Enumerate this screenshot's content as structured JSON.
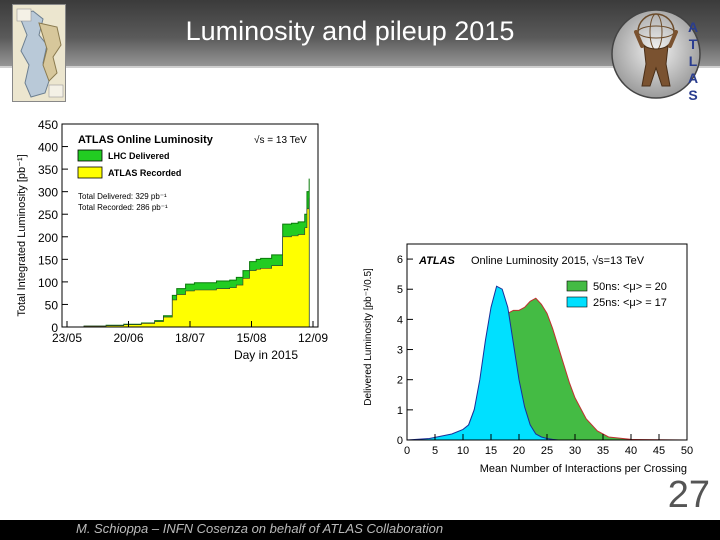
{
  "header": {
    "title": "Luminosity and pileup 2015"
  },
  "logo": {
    "letters": [
      "A",
      "T",
      "L",
      "A",
      "S"
    ]
  },
  "footer": {
    "text": "M. Schioppa – INFN Cosenza on behalf of ATLAS Collaboration",
    "page_number": "27"
  },
  "colors": {
    "delivered": "#22cc22",
    "recorded": "#ffff00",
    "ns50": "#44bb44",
    "ns25": "#00e0ff",
    "header_dark": "#3b3b3b"
  },
  "chart_data": [
    {
      "type": "area",
      "title": "ATLAS Online Luminosity",
      "energy_label": "√s = 13 TeV",
      "xlabel": "Day in 2015",
      "ylabel": "Total Integrated Luminosity [pb⁻¹]",
      "xticks": [
        "23/05",
        "20/06",
        "18/07",
        "15/08",
        "12/09"
      ],
      "yticks": [
        0,
        50,
        100,
        150,
        200,
        250,
        300,
        350,
        400,
        450
      ],
      "xlim": [
        0,
        116
      ],
      "ylim": [
        0,
        450
      ],
      "legend": [
        "LHC Delivered",
        "ATLAS Recorded"
      ],
      "legend_position": "top-left",
      "annotations": [
        "Total Delivered: 329 pb⁻¹",
        "Total Recorded: 286 pb⁻¹"
      ],
      "x": [
        0,
        10,
        20,
        28,
        36,
        42,
        46,
        50,
        52,
        56,
        60,
        70,
        76,
        79,
        82,
        85,
        88,
        90,
        95,
        100,
        104,
        107,
        110,
        111,
        112
      ],
      "series": [
        {
          "name": "LHC Delivered",
          "values": [
            0,
            2,
            4,
            6,
            9,
            14,
            25,
            70,
            85,
            95,
            98,
            102,
            104,
            110,
            125,
            145,
            150,
            152,
            160,
            228,
            230,
            233,
            250,
            300,
            329
          ]
        },
        {
          "name": "ATLAS Recorded",
          "values": [
            0,
            2,
            3,
            5,
            8,
            12,
            22,
            60,
            72,
            80,
            82,
            85,
            87,
            93,
            108,
            125,
            128,
            130,
            136,
            200,
            202,
            205,
            220,
            262,
            286
          ]
        }
      ]
    },
    {
      "type": "area",
      "title": "ATLAS",
      "subtitle": "Online Luminosity 2015, √s=13 TeV",
      "xlabel": "Mean Number of Interactions per Crossing",
      "ylabel": "Delivered Luminosity [pb⁻¹/0.5]",
      "xticks": [
        0,
        5,
        10,
        15,
        20,
        25,
        30,
        35,
        40,
        45,
        50
      ],
      "yticks": [
        0,
        1,
        2,
        3,
        4,
        5,
        6
      ],
      "xlim": [
        0,
        50
      ],
      "ylim": [
        0,
        6.5
      ],
      "legend": [
        "50ns: <μ> = 20",
        "25ns: <μ> = 17"
      ],
      "legend_position": "top-right",
      "x": [
        0,
        4,
        8,
        10,
        11,
        12,
        13,
        14,
        15,
        16,
        17,
        18,
        19,
        20,
        21,
        22,
        23,
        24,
        25,
        26,
        27,
        28,
        29,
        30,
        32,
        34,
        36,
        40,
        50
      ],
      "series": [
        {
          "name": "50ns: <μ> = 20",
          "values": [
            0,
            0,
            0.05,
            0.2,
            0.5,
            1.0,
            1.6,
            2.3,
            2.9,
            3.4,
            3.9,
            4.2,
            4.3,
            4.3,
            4.4,
            4.6,
            4.7,
            4.5,
            4.2,
            3.7,
            3.1,
            2.5,
            1.9,
            1.4,
            0.7,
            0.3,
            0.1,
            0.02,
            0
          ]
        },
        {
          "name": "25ns: <μ> = 17",
          "values": [
            0,
            0.05,
            0.2,
            0.35,
            0.5,
            1.0,
            2.0,
            3.3,
            4.4,
            5.1,
            5.0,
            4.4,
            3.2,
            2.0,
            1.1,
            0.5,
            0.2,
            0.1,
            0.05,
            0.02,
            0,
            0,
            0,
            0,
            0,
            0,
            0,
            0,
            0
          ]
        }
      ]
    }
  ]
}
